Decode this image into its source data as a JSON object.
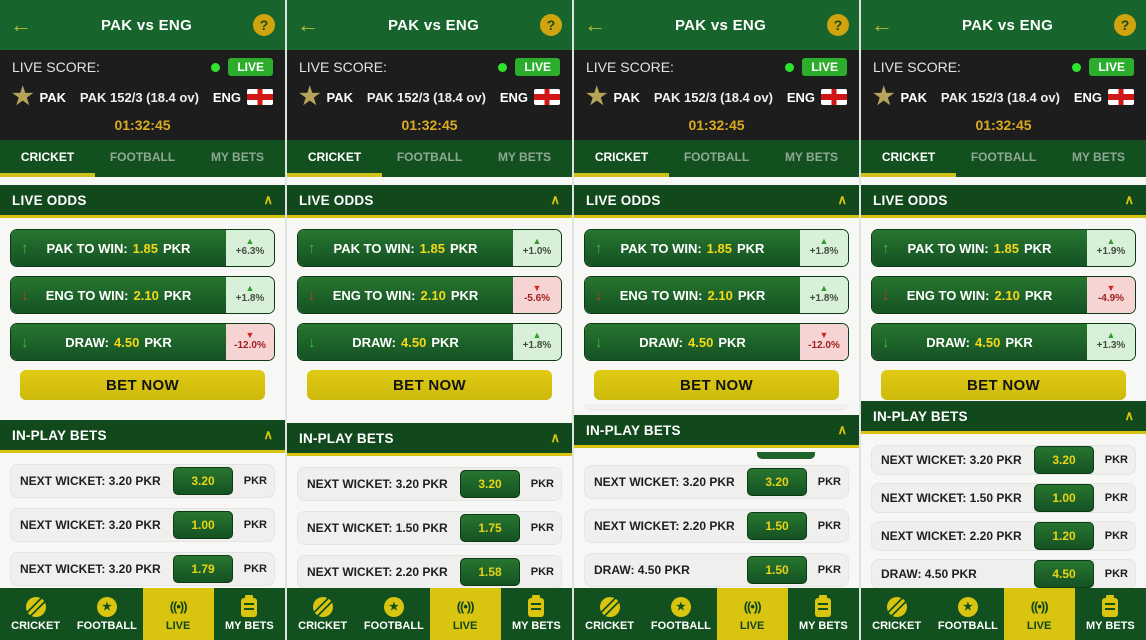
{
  "shared": {
    "header": {
      "back_icon": "arrow-left-icon",
      "title": "PAK vs ENG",
      "help_label": "?"
    },
    "live_score": {
      "label": "LIVE SCORE:",
      "live_badge": "LIVE",
      "dot_icon": "green-dot-icon"
    },
    "match": {
      "home_team": "PAK",
      "home_logo_icon": "star-icon",
      "score": "PAK 152/3 (18.4 ov)",
      "away_team": "ENG",
      "away_flag_icon": "england-flag-icon",
      "timer": "01:32:45"
    },
    "tabs": [
      {
        "label": "CRICKET"
      },
      {
        "label": "FOOTBALL"
      },
      {
        "label": "MY BETS"
      }
    ],
    "live_odds_title": "LIVE ODDS",
    "inplay_title": "IN-PLAY BETS",
    "bet_now_label": "BET NOW",
    "chevron_icon": "chevron-up-icon",
    "currency": "PKR",
    "bottom_nav": [
      {
        "label": "CRICKET",
        "icon": "cricket-ball-icon"
      },
      {
        "label": "FOOTBALL",
        "icon": "football-icon"
      },
      {
        "label": "LIVE",
        "icon": "live-broadcast-icon",
        "active": true
      },
      {
        "label": "MY BETS",
        "icon": "bet-slip-icon"
      }
    ],
    "colors": {
      "header_green": "#17652c",
      "nav_green": "#12511f",
      "section_green": "#11491c",
      "accent_yellow": "#d9c40f",
      "timer_gold": "#d9ab1f",
      "live_green": "#2cae2c",
      "odds_value_yellow": "#f5d818",
      "badge_up_bg": "#d8efd8",
      "badge_down_bg": "#f6d4d4"
    }
  },
  "panels": [
    {
      "odds": [
        {
          "trend": "up",
          "trend_tone": "green",
          "label": "PAK TO WIN:",
          "value": "1.85",
          "currency": "PKR",
          "change": "+6.3%",
          "change_dir": "up",
          "change_tone": "green"
        },
        {
          "trend": "down",
          "trend_tone": "red",
          "label": "ENG TO WIN:",
          "value": "2.10",
          "currency": "PKR",
          "change": "+1.8%",
          "change_dir": "up",
          "change_tone": "green"
        },
        {
          "trend": "down",
          "trend_tone": "green",
          "label": "DRAW:",
          "value": "4.50",
          "currency": "PKR",
          "change": "-12.0%",
          "change_dir": "down",
          "change_tone": "red"
        }
      ],
      "inplay": {
        "rows": [
          {
            "label": "NEXT WICKET: 3.20 PKR",
            "value": "3.20",
            "currency": "PKR"
          },
          {
            "label": "NEXT WICKET: 3.20 PKR",
            "value": "1.00",
            "currency": "PKR"
          },
          {
            "label": "NEXT WICKET: 3.20 PKR",
            "value": "1.79",
            "currency": "PKR"
          }
        ]
      }
    },
    {
      "odds": [
        {
          "trend": "up",
          "trend_tone": "green",
          "label": "PAK TO WIN:",
          "value": "1.85",
          "currency": "PKR",
          "change": "+1.0%",
          "change_dir": "up",
          "change_tone": "green"
        },
        {
          "trend": "down",
          "trend_tone": "red",
          "label": "ENG TO WIN:",
          "value": "2.10",
          "currency": "PKR",
          "change": "-5.6%",
          "change_dir": "down",
          "change_tone": "red"
        },
        {
          "trend": "down",
          "trend_tone": "green",
          "label": "DRAW:",
          "value": "4.50",
          "currency": "PKR",
          "change": "+1.8%",
          "change_dir": "up",
          "change_tone": "green"
        }
      ],
      "inplay": {
        "rows": [
          {
            "label": "NEXT WICKET: 3.20 PKR",
            "value": "3.20",
            "currency": "PKR"
          },
          {
            "label": "NEXT WICKET: 1.50 PKR",
            "value": "1.75",
            "currency": "PKR"
          },
          {
            "label": "NEXT WICKET: 2.20 PKR",
            "value": "1.58",
            "currency": "PKR"
          }
        ]
      }
    },
    {
      "odds": [
        {
          "trend": "up",
          "trend_tone": "green",
          "label": "PAK TO WIN:",
          "value": "1.85",
          "currency": "PKR",
          "change": "+1.8%",
          "change_dir": "up",
          "change_tone": "green"
        },
        {
          "trend": "down",
          "trend_tone": "red",
          "label": "ENG TO WIN:",
          "value": "2.10",
          "currency": "PKR",
          "change": "+1.8%",
          "change_dir": "up",
          "change_tone": "green"
        },
        {
          "trend": "down",
          "trend_tone": "green",
          "label": "DRAW:",
          "value": "4.50",
          "currency": "PKR",
          "change": "-12.0%",
          "change_dir": "down",
          "change_tone": "red"
        }
      ],
      "inplay": {
        "rows": [
          {
            "label": "NEXT WICKET: 3.20 PKR",
            "value": "3.20",
            "currency": "PKR"
          },
          {
            "label": "NEXT WICKET: 2.20 PKR",
            "value": "1.50",
            "currency": "PKR"
          },
          {
            "label": "DRAW: 4.50 PKR",
            "value": "1.50",
            "currency": "PKR"
          }
        ]
      }
    },
    {
      "odds": [
        {
          "trend": "up",
          "trend_tone": "green",
          "label": "PAK TO WIN:",
          "value": "1.85",
          "currency": "PKR",
          "change": "+1.9%",
          "change_dir": "up",
          "change_tone": "green"
        },
        {
          "trend": "down",
          "trend_tone": "red",
          "label": "ENG TO WIN:",
          "value": "2.10",
          "currency": "PKR",
          "change": "-4.9%",
          "change_dir": "down",
          "change_tone": "red"
        },
        {
          "trend": "down",
          "trend_tone": "green",
          "label": "DRAW:",
          "value": "4.50",
          "currency": "PKR",
          "change": "+1.3%",
          "change_dir": "up",
          "change_tone": "green"
        }
      ],
      "inplay": {
        "rows": [
          {
            "label": "NEXT WICKET: 3.20 PKR",
            "value": "3.20",
            "currency": "PKR"
          },
          {
            "label": "NEXT WICKET: 1.50 PKR",
            "value": "1.00",
            "currency": "PKR"
          },
          {
            "label": "NEXT WICKET: 2.20 PKR",
            "value": "1.20",
            "currency": "PKR"
          },
          {
            "label": "DRAW: 4.50 PKR",
            "value": "4.50",
            "currency": "PKR"
          }
        ]
      }
    }
  ]
}
